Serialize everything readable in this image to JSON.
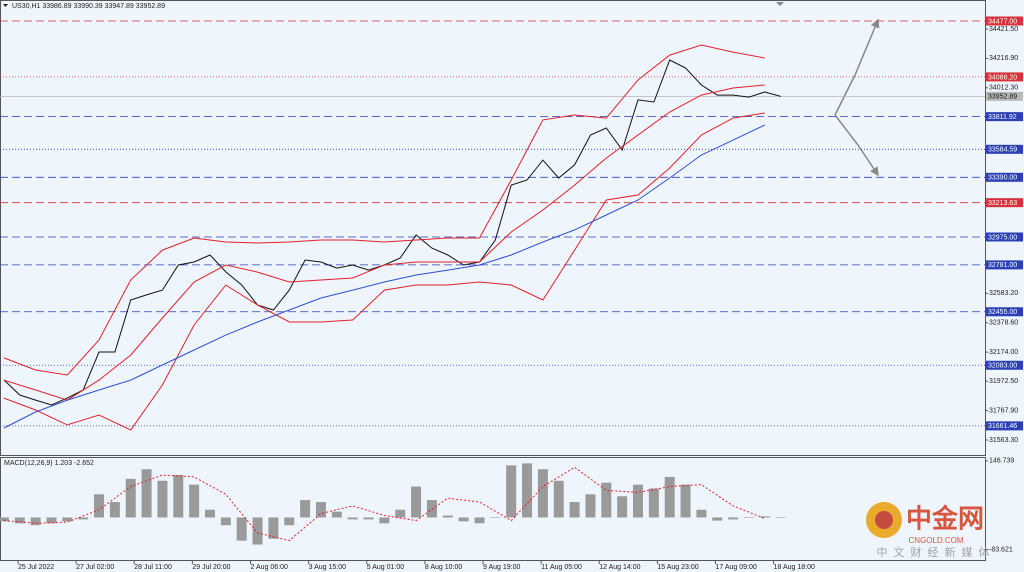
{
  "chart_data": [
    {
      "type": "line",
      "title": "US30,H1 33986.89 33990.39 33947.89 33952.89",
      "xlim": [
        -10.22,
        549
      ],
      "ylim": [
        31459,
        34623
      ],
      "xticks": [
        {
          "value": 0,
          "label": "25 Jul 2022"
        },
        {
          "value": 33,
          "label": "27 Jul 02:00"
        },
        {
          "value": 66,
          "label": "28 Jul 11:00"
        },
        {
          "value": 99,
          "label": "29 Jul 20:00"
        },
        {
          "value": 132,
          "label": "2 Aug 06:00"
        },
        {
          "value": 165,
          "label": "3 Aug 15:00"
        },
        {
          "value": 198,
          "label": "5 Aug 01:00"
        },
        {
          "value": 231,
          "label": "8 Aug 10:00"
        },
        {
          "value": 264,
          "label": "9 Aug 19:00"
        },
        {
          "value": 297,
          "label": "11 Aug 05:00"
        },
        {
          "value": 330,
          "label": "12 Aug 14:00"
        },
        {
          "value": 363,
          "label": "15 Aug 23:00"
        },
        {
          "value": 396,
          "label": "17 Aug 09:00"
        },
        {
          "value": 429,
          "label": "18 Aug 18:00"
        }
      ],
      "yticks": [
        {
          "value": 34421.5,
          "label": "34421.50"
        },
        {
          "value": 34216.9,
          "label": "34216.90"
        },
        {
          "value": 34012.3,
          "label": "34012.30"
        },
        {
          "value": 32583.2,
          "label": "32583.20"
        },
        {
          "value": 32378.6,
          "label": "32378.60"
        },
        {
          "value": 32174.0,
          "label": "32174.00"
        },
        {
          "value": 31972.5,
          "label": "31972.50"
        },
        {
          "value": 31767.9,
          "label": "31767.90"
        },
        {
          "value": 31563.3,
          "label": "31563.30"
        }
      ],
      "series": [
        {
          "color": "#111111",
          "x": [
            -8,
            1,
            10,
            19,
            28,
            37,
            46,
            55,
            64,
            73,
            82,
            91,
            100,
            109,
            118,
            127,
            136,
            145,
            154,
            163,
            172,
            181,
            190,
            199,
            208,
            217,
            226,
            235,
            244,
            253,
            262,
            271,
            280,
            289,
            298,
            307,
            316,
            325,
            334,
            343,
            352,
            361,
            370,
            379,
            388,
            397,
            406,
            415,
            424,
            433
          ],
          "values": [
            31981,
            31876,
            31841,
            31807,
            31855,
            31911,
            32175,
            32175,
            32537,
            32572,
            32606,
            32780,
            32801,
            32850,
            32732,
            32641,
            32502,
            32467,
            32606,
            32815,
            32801,
            32759,
            32780,
            32745,
            32780,
            32829,
            32989,
            32898,
            32850,
            32780,
            32801,
            32954,
            33336,
            33371,
            33510,
            33385,
            33476,
            33684,
            33733,
            33580,
            33928,
            33914,
            34206,
            34150,
            34032,
            33962,
            33962,
            33948,
            33983,
            33952.89
          ]
        },
        {
          "color": "#e0202a",
          "x": [
            -8,
            10,
            28,
            46,
            64,
            82,
            100,
            118,
            136,
            154,
            172,
            190,
            208,
            226,
            244,
            262,
            280,
            298,
            316,
            334,
            352,
            370,
            388,
            406,
            424
          ],
          "values": [
            32134,
            32050,
            32015,
            32259,
            32676,
            32884,
            32968,
            32940,
            32933,
            32940,
            32954,
            32954,
            32940,
            32954,
            32968,
            32968,
            33371,
            33789,
            33823,
            33802,
            34067,
            34240,
            34310,
            34261,
            34220
          ]
        },
        {
          "color": "#e0202a",
          "x": [
            -8,
            10,
            28,
            46,
            64,
            82,
            100,
            118,
            136,
            154,
            172,
            190,
            208,
            226,
            244,
            262,
            280,
            298,
            316,
            334,
            352,
            370,
            388,
            406,
            424
          ],
          "values": [
            31980,
            31911,
            31841,
            31980,
            32154,
            32412,
            32662,
            32780,
            32731,
            32662,
            32676,
            32690,
            32780,
            32801,
            32801,
            32801,
            33010,
            33163,
            33336,
            33524,
            33684,
            33844,
            33962,
            34011,
            34032
          ]
        },
        {
          "color": "#e0202a",
          "x": [
            -8,
            10,
            28,
            46,
            64,
            82,
            100,
            118,
            136,
            154,
            172,
            190,
            208,
            226,
            244,
            262,
            280,
            298,
            316,
            334,
            352,
            370,
            388,
            406,
            424
          ],
          "values": [
            31855,
            31772,
            31668,
            31737,
            31633,
            31946,
            32363,
            32641,
            32502,
            32384,
            32384,
            32398,
            32606,
            32641,
            32641,
            32662,
            32641,
            32537,
            32884,
            33232,
            33267,
            33455,
            33684,
            33802,
            33837
          ]
        },
        {
          "color": "#3050d0",
          "x": [
            -8,
            10,
            28,
            46,
            64,
            82,
            100,
            118,
            136,
            154,
            172,
            190,
            208,
            226,
            244,
            262,
            280,
            298,
            316,
            334,
            352,
            370,
            388,
            406,
            424
          ],
          "values": [
            31647,
            31758,
            31841,
            31911,
            31980,
            32085,
            32189,
            32293,
            32384,
            32467,
            32551,
            32606,
            32662,
            32711,
            32745,
            32780,
            32850,
            32940,
            33024,
            33128,
            33232,
            33385,
            33545,
            33649,
            33754
          ]
        }
      ],
      "levels": [
        {
          "value": 34477.0,
          "label": "34477.00",
          "color": "#d9303a",
          "style": "dash"
        },
        {
          "value": 34088.2,
          "label": "34088.20",
          "color": "#d9303a",
          "style": "dot"
        },
        {
          "value": 33952.89,
          "label": "33952.89",
          "color": "#b8b8b8",
          "style": "solid"
        },
        {
          "value": 33811.92,
          "label": "33811.92",
          "color": "#2a3fb8",
          "style": "dash"
        },
        {
          "value": 33584.59,
          "label": "33584.59",
          "color": "#2a3fb8",
          "style": "dot"
        },
        {
          "value": 33390.0,
          "label": "33390.00",
          "color": "#2a3fb8",
          "style": "dash"
        },
        {
          "value": 33213.63,
          "label": "33213.63",
          "color": "#d9303a",
          "style": "dash"
        },
        {
          "value": 32975.0,
          "label": "32975.00",
          "color": "#2a3fb8",
          "style": "dash"
        },
        {
          "value": 32781.0,
          "label": "32781.00",
          "color": "#2a3fb8",
          "style": "dash"
        },
        {
          "value": 32455.0,
          "label": "32455.00",
          "color": "#2a3fb8",
          "style": "dash"
        },
        {
          "value": 32083.0,
          "label": "32083.00",
          "color": "#2a3fb8",
          "style": "dot"
        },
        {
          "value": 31661.46,
          "label": "31661.46",
          "color": "#2a3fb8",
          "style": "dot"
        }
      ]
    },
    {
      "type": "bar",
      "title": "MACD(12,26,9) 1.203 -2.652",
      "xlim": [
        -10.22,
        549
      ],
      "ylim": [
        -112.7,
        154
      ],
      "yticks": [
        146.739,
        -83.621
      ],
      "series": [
        {
          "type": "bar",
          "color": "#9a9a9a",
          "x": [
            -8,
            1,
            10,
            19,
            28,
            37,
            46,
            55,
            64,
            73,
            82,
            91,
            100,
            109,
            118,
            127,
            136,
            145,
            154,
            163,
            172,
            181,
            190,
            199,
            208,
            217,
            226,
            235,
            244,
            253,
            262,
            271,
            280,
            289,
            298,
            307,
            316,
            325,
            334,
            343,
            352,
            361,
            370,
            379,
            388,
            397,
            406,
            415,
            424,
            433
          ],
          "values": [
            -10,
            -15,
            -20,
            -15,
            -10,
            -5,
            60,
            40,
            100,
            125,
            95,
            110,
            85,
            20,
            -20,
            -60,
            -70,
            -55,
            -20,
            45,
            40,
            15,
            -5,
            -5,
            -15,
            20,
            80,
            45,
            5,
            -10,
            -15,
            0,
            135,
            140,
            125,
            95,
            40,
            60,
            90,
            55,
            85,
            75,
            105,
            85,
            20,
            -8,
            -5,
            0,
            3,
            1.203
          ]
        },
        {
          "type": "line",
          "color": "#e0202a",
          "x": [
            -8,
            10,
            28,
            46,
            64,
            82,
            100,
            118,
            136,
            154,
            172,
            190,
            208,
            226,
            244,
            262,
            280,
            298,
            316,
            334,
            352,
            370,
            388,
            406,
            424
          ],
          "values": [
            -8,
            -15,
            -12,
            20,
            80,
            110,
            105,
            60,
            -40,
            -60,
            10,
            30,
            5,
            -8,
            50,
            40,
            -8,
            80,
            130,
            70,
            65,
            80,
            85,
            30,
            -2.652
          ]
        }
      ]
    }
  ],
  "watermark": {
    "logo": "中金网",
    "site": "CNGOLD.COM",
    "tagline": "中文财经新媒体"
  }
}
